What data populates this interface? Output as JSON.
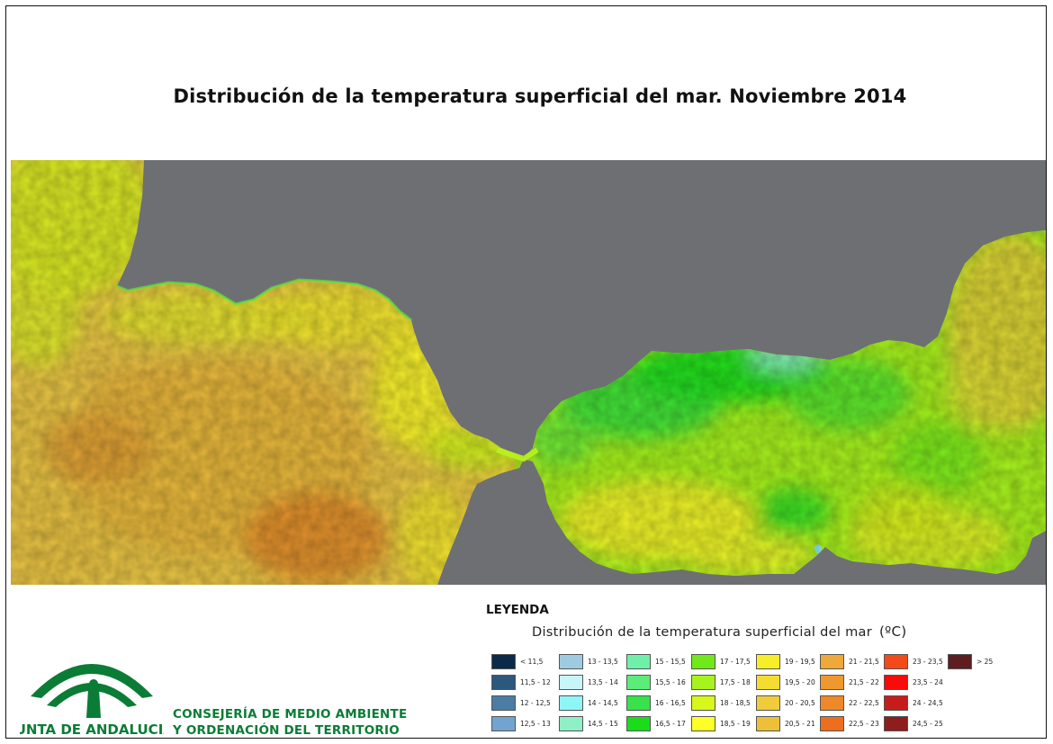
{
  "title": "Distribución de la temperatura superficial del mar. Noviembre 2014",
  "map": {
    "regions": [
      "atlantic-ocean",
      "alboran-sea",
      "land-mask",
      "strait-of-gibraltar"
    ],
    "colors": {
      "land": "#6e6f73",
      "atlantic_dominant": "#e8c040",
      "alboran_dominant": "#7cf000",
      "warm_patch": "#e08a2a",
      "cool_patch": "#2ee23a"
    }
  },
  "legend": {
    "heading": "LEYENDA",
    "subtitle": "Distribución de la temperatura superficial del mar",
    "unit": "(ºC)",
    "classes": [
      {
        "label": "< 11,5",
        "color": "#0b2a4a"
      },
      {
        "label": "11,5 - 12",
        "color": "#2c587e"
      },
      {
        "label": "12 - 12,5",
        "color": "#4b7ca4"
      },
      {
        "label": "12,5 - 13",
        "color": "#73a4cf"
      },
      {
        "label": "13 - 13,5",
        "color": "#9fcbe2"
      },
      {
        "label": "13,5 - 14",
        "color": "#c8f5f8"
      },
      {
        "label": "14 - 14,5",
        "color": "#8ff6f8"
      },
      {
        "label": "14,5 - 15",
        "color": "#8ff0c8"
      },
      {
        "label": "15 - 15,5",
        "color": "#6ff0a8"
      },
      {
        "label": "15,5 - 16",
        "color": "#5cec78"
      },
      {
        "label": "16 - 16,5",
        "color": "#37e24a"
      },
      {
        "label": "16,5 - 17",
        "color": "#1bdc1b"
      },
      {
        "label": "17 - 17,5",
        "color": "#6fea18"
      },
      {
        "label": "17,5 - 18",
        "color": "#a6f41e"
      },
      {
        "label": "18 - 18,5",
        "color": "#d6f81a"
      },
      {
        "label": "18,5 - 19",
        "color": "#ffff28"
      },
      {
        "label": "19 - 19,5",
        "color": "#f8ee28"
      },
      {
        "label": "19,5 - 20",
        "color": "#f4dc30"
      },
      {
        "label": "20 - 20,5",
        "color": "#f0cc3a"
      },
      {
        "label": "20,5 - 21",
        "color": "#eec03a"
      },
      {
        "label": "21 - 21,5",
        "color": "#f0a838"
      },
      {
        "label": "21,5 - 22",
        "color": "#ef982e"
      },
      {
        "label": "22 - 22,5",
        "color": "#ee8828"
      },
      {
        "label": "22,5 - 23",
        "color": "#ec6e1e"
      },
      {
        "label": "23 - 23,5",
        "color": "#f44a1a"
      },
      {
        "label": "23,5 - 24",
        "color": "#fb0a0a"
      },
      {
        "label": "24 - 24,5",
        "color": "#c81c1c"
      },
      {
        "label": "24,5 - 25",
        "color": "#8e1d1d"
      },
      {
        "label": "> 25",
        "color": "#5e1e20"
      }
    ]
  },
  "organization": {
    "logo_text": "JUNTA DE ANDALUCIA",
    "line1": "CONSEJERÍA DE MEDIO AMBIENTE",
    "line2": "Y ORDENACIÓN DEL TERRITORIO",
    "brand_color": "#0a7c36"
  }
}
